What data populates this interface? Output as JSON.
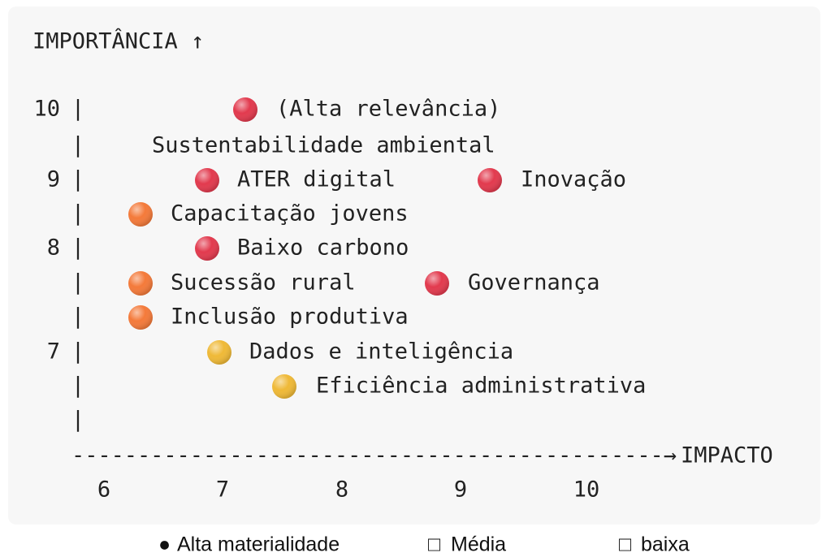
{
  "code": {
    "y_title": "IMPORTÂNCIA ↑",
    "axis_char": "|",
    "rows": [
      {
        "tick": "10",
        "items": [
          {
            "dot": "#e23a4e",
            "text": "(Alta relevância)"
          }
        ]
      },
      {
        "items": [
          {
            "text": "Sustentabilidade ambiental"
          }
        ]
      },
      {
        "tick": "9",
        "items": [
          {
            "dot": "#e23a4e",
            "text": "ATER digital"
          },
          {
            "dot": "#e23a4e",
            "text": "Inovação"
          }
        ]
      },
      {
        "items": [
          {
            "dot": "#f47a3a",
            "text": "Capacitação jovens"
          }
        ]
      },
      {
        "tick": "8",
        "items": [
          {
            "dot": "#e23a4e",
            "text": "Baixo carbono"
          }
        ]
      },
      {
        "items": [
          {
            "dot": "#f47a3a",
            "text": "Sucessão rural"
          },
          {
            "dot": "#e23a4e",
            "text": "Governança"
          }
        ]
      },
      {
        "items": [
          {
            "dot": "#f47a3a",
            "text": "Inclusão produtiva"
          }
        ]
      },
      {
        "tick": "7",
        "items": [
          {
            "dot": "#efb937",
            "text": "Dados e inteligência"
          }
        ]
      },
      {
        "items": [
          {
            "dot": "#efb937",
            "text": "Eficiência administrativa"
          }
        ]
      },
      {
        "items": []
      }
    ],
    "x_axis_line": "---------------------------------------------→",
    "x_title": "IMPACTO",
    "x_ticks": [
      "6",
      "7",
      "8",
      "9",
      "10"
    ]
  },
  "legend": [
    {
      "symbol": "●",
      "text": "Alta materialidade"
    },
    {
      "symbol": "□",
      "text": "Média"
    },
    {
      "symbol": "□",
      "text": "baixa"
    }
  ]
}
